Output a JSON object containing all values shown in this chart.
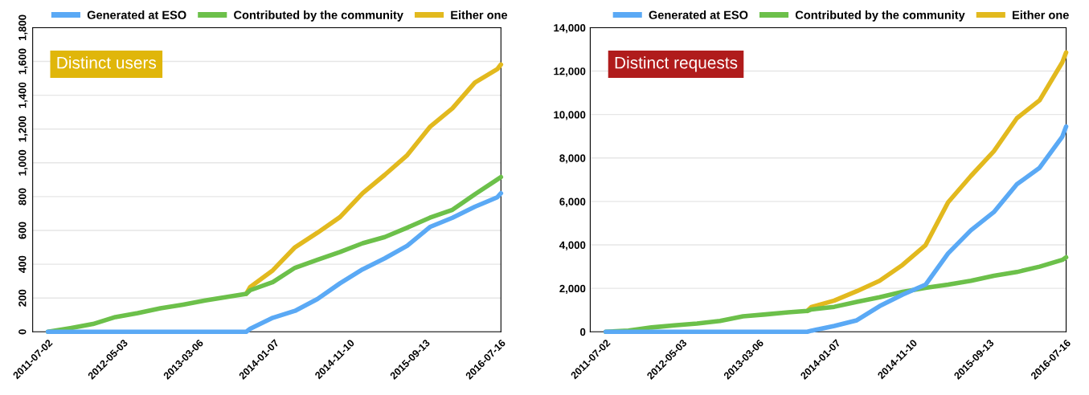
{
  "chart_data": [
    {
      "type": "line",
      "title": "Distinct users",
      "x": [
        "2011-07-02",
        "2011-10",
        "2012-01",
        "2012-04",
        "2012-07",
        "2012-10",
        "2013-01",
        "2013-04",
        "2013-07",
        "2013-09-15",
        "2013-10",
        "2014-01",
        "2014-04",
        "2014-07",
        "2014-10",
        "2015-01",
        "2015-04",
        "2015-07",
        "2015-10",
        "2016-01",
        "2016-04",
        "2016-07",
        "2016-07-16"
      ],
      "series": [
        {
          "name": "Generated at ESO",
          "color": "#5aa9f5",
          "values": [
            0,
            0,
            0,
            0,
            0,
            0,
            0,
            0,
            0,
            0,
            18,
            83,
            124,
            194,
            287,
            370,
            435,
            509,
            620,
            675,
            740,
            796,
            820
          ]
        },
        {
          "name": "Contributed by the community",
          "color": "#6cc04a",
          "values": [
            0,
            22,
            46,
            87,
            111,
            139,
            161,
            185,
            207,
            225,
            246,
            294,
            379,
            426,
            472,
            524,
            561,
            616,
            675,
            722,
            814,
            901,
            916
          ]
        },
        {
          "name": "Either one",
          "color": "#e2b91e",
          "values": [
            null,
            null,
            null,
            null,
            null,
            null,
            null,
            null,
            null,
            225,
            265,
            364,
            500,
            586,
            679,
            820,
            929,
            1045,
            1212,
            1323,
            1475,
            1554,
            1582
          ]
        }
      ],
      "xlim": [
        "2011-05-01",
        "2016-07-16"
      ],
      "xticks": [
        "2011-07-02",
        "2012-05-03",
        "2013-03-06",
        "2014-01-07",
        "2014-11-10",
        "2015-09-13",
        "2016-07-16"
      ],
      "ylim": [
        0,
        1800
      ],
      "yticks": [
        0,
        200,
        400,
        600,
        800,
        {
          "value": 1000,
          "label": "1,000"
        },
        {
          "value": 1200,
          "label": "1,200"
        },
        {
          "value": 1400,
          "label": "1,400"
        },
        {
          "value": 1600,
          "label": "1,600"
        },
        {
          "value": 1800,
          "label": "1,800"
        }
      ],
      "grid": "y",
      "legend": "top",
      "marker": "none",
      "line_style": "solid"
    },
    {
      "type": "line",
      "title": "Distinct requests",
      "x": [
        "2011-07-02",
        "2011-10",
        "2012-01",
        "2012-04",
        "2012-07",
        "2012-10",
        "2013-01",
        "2013-04",
        "2013-07",
        "2013-09-15",
        "2013-10",
        "2014-01",
        "2014-04",
        "2014-07",
        "2014-10",
        "2015-01",
        "2015-04",
        "2015-07",
        "2015-10",
        "2016-01",
        "2016-04",
        "2016-07",
        "2016-07-16"
      ],
      "series": [
        {
          "name": "Generated at ESO",
          "color": "#5aa9f5",
          "values": [
            0,
            0,
            0,
            0,
            0,
            0,
            0,
            0,
            0,
            0,
            50,
            270,
            530,
            1180,
            1710,
            2170,
            3610,
            4670,
            5510,
            6790,
            7550,
            8990,
            9450
          ]
        },
        {
          "name": "Contributed by the community",
          "color": "#6cc04a",
          "values": [
            0,
            60,
            200,
            300,
            380,
            500,
            710,
            800,
            900,
            960,
            1030,
            1150,
            1380,
            1590,
            1840,
            2020,
            2170,
            2350,
            2580,
            2750,
            3000,
            3310,
            3430
          ]
        },
        {
          "name": "Either one",
          "color": "#e2b91e",
          "values": [
            null,
            null,
            null,
            null,
            null,
            null,
            null,
            null,
            null,
            960,
            1140,
            1440,
            1870,
            2350,
            3080,
            3990,
            5960,
            7170,
            8310,
            9830,
            10660,
            12410,
            12860
          ]
        }
      ],
      "xlim": [
        "2011-05-01",
        "2016-07-16"
      ],
      "xticks": [
        "2011-07-02",
        "2012-05-03",
        "2013-03-06",
        "2014-01-07",
        "2014-11-10",
        "2015-09-13",
        "2016-07-16"
      ],
      "ylim": [
        0,
        14000
      ],
      "yticks": [
        0,
        {
          "value": 2000,
          "label": "2,000"
        },
        {
          "value": 4000,
          "label": "4,000"
        },
        {
          "value": 6000,
          "label": "6,000"
        },
        {
          "value": 8000,
          "label": "8,000"
        },
        {
          "value": 10000,
          "label": "10,000"
        },
        {
          "value": 12000,
          "label": "12,000"
        },
        {
          "value": 14000,
          "label": "14,000"
        }
      ],
      "grid": "y",
      "legend": "top",
      "marker": "none",
      "line_style": "solid"
    }
  ]
}
